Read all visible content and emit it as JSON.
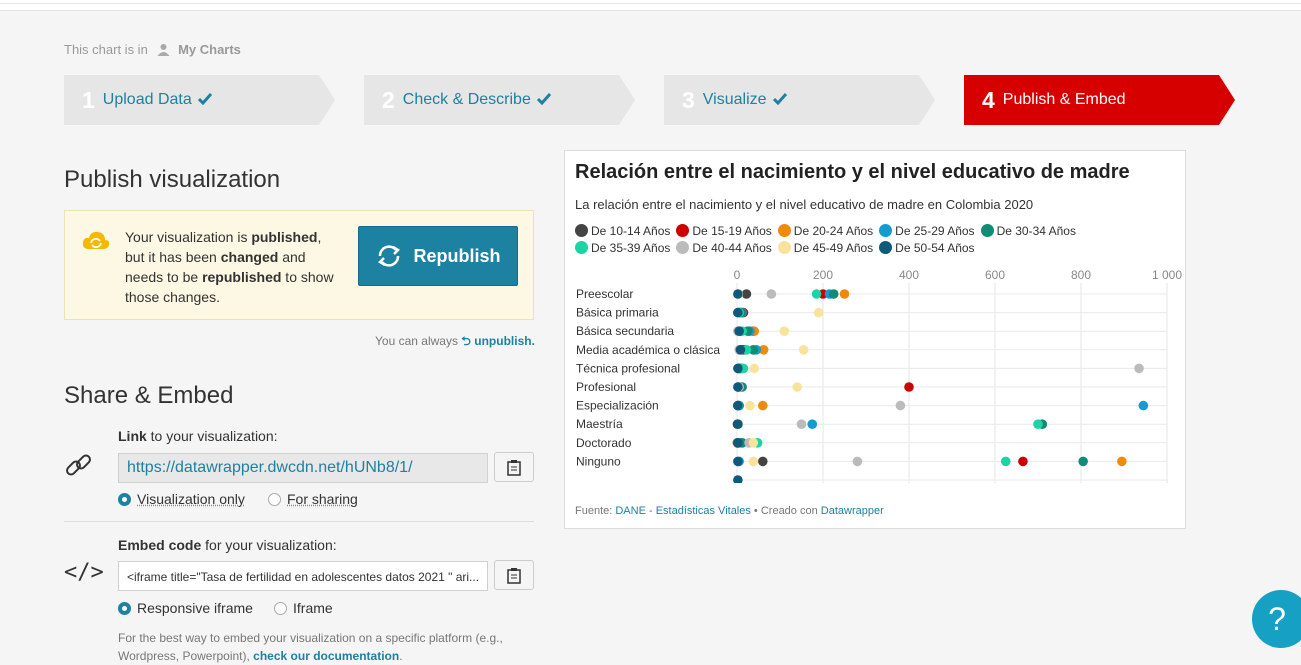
{
  "breadcrumb": {
    "prefix": "This chart is in",
    "folder": "My Charts"
  },
  "steps": [
    {
      "num": "1",
      "label": "Upload Data",
      "done": true
    },
    {
      "num": "2",
      "label": "Check & Describe",
      "done": true
    },
    {
      "num": "3",
      "label": "Visualize",
      "done": true
    },
    {
      "num": "4",
      "label": "Publish & Embed",
      "done": false
    }
  ],
  "publish": {
    "heading": "Publish visualization",
    "notice_parts": [
      "Your visualization is ",
      "published",
      ", but it has been ",
      "changed",
      " and needs to be ",
      "republished",
      " to show those changes."
    ],
    "republish_label": "Republish",
    "unpublish_prefix": "You can always",
    "unpublish_link": "unpublish."
  },
  "share": {
    "heading": "Share & Embed",
    "link_label_bold": "Link",
    "link_label_rest": " to your visualization:",
    "url": "https://datawrapper.dwcdn.net/hUNb8/1/",
    "link_options": [
      "Visualization only",
      "For sharing"
    ],
    "embed_label_bold": "Embed code",
    "embed_label_rest": " for your visualization:",
    "embed_code": "<iframe title=\"Tasa de fertilidad en adolescentes datos 2021 \" ari...",
    "embed_options": [
      "Responsive iframe",
      "Iframe"
    ],
    "hint_text": "For the best way to embed your visualization on a specific platform (e.g., Wordpress, Powerpoint), ",
    "hint_link": "check our documentation",
    "hint_end": "."
  },
  "chart_data": {
    "type": "scatter",
    "title": "Relación entre el nacimiento y el nivel educativo de madre",
    "subtitle": "La relación entre el nacimiento y el nivel educativo de madre en Colombia 2020",
    "xlim": [
      0,
      1000
    ],
    "x_ticks": [
      "0",
      "200",
      "400",
      "600",
      "800",
      "1 000"
    ],
    "x_tick_values": [
      0,
      200,
      400,
      600,
      800,
      1000
    ],
    "categories": [
      "Preescolar",
      "Básica primaria",
      "Básica secundaria",
      "Media académica o clásica",
      "Técnica profesional",
      "Profesional",
      "Especialización",
      "Maestría",
      "Doctorado",
      "Ninguno",
      ""
    ],
    "series": [
      {
        "name": "De 10-14 Años",
        "color": "#444444",
        "values": [
          22,
          5,
          8,
          12,
          3,
          3,
          2,
          1,
          1,
          60,
          null
        ]
      },
      {
        "name": "De 15-19 Años",
        "color": "#cc0000",
        "values": [
          200,
          15,
          38,
          18,
          5,
          400,
          3,
          2,
          1,
          665,
          null
        ]
      },
      {
        "name": "De 20-24 Años",
        "color": "#f08a0b",
        "values": [
          250,
          8,
          40,
          62,
          10,
          5,
          60,
          3,
          1,
          895,
          null
        ]
      },
      {
        "name": "De 25-29 Años",
        "color": "#149bd0",
        "values": [
          215,
          12,
          30,
          45,
          12,
          8,
          945,
          175,
          5,
          5,
          null
        ]
      },
      {
        "name": "De 30-34 Años",
        "color": "#0e8c76",
        "values": [
          225,
          10,
          25,
          38,
          8,
          12,
          5,
          710,
          12,
          805,
          null
        ]
      },
      {
        "name": "De 35-39 Años",
        "color": "#1bd3a3",
        "values": [
          185,
          5,
          12,
          22,
          15,
          5,
          3,
          700,
          48,
          625,
          null
        ]
      },
      {
        "name": "De 40-44 Años",
        "color": "#bbbbbb",
        "values": [
          80,
          2,
          2,
          5,
          935,
          5,
          380,
          150,
          28,
          280,
          null
        ]
      },
      {
        "name": "De 45-49 Años",
        "color": "#f9e39c",
        "values": [
          3,
          190,
          110,
          155,
          40,
          140,
          30,
          3,
          38,
          38,
          null
        ]
      },
      {
        "name": "De 50-54 Años",
        "color": "#0d5a7a",
        "values": [
          2,
          2,
          5,
          8,
          2,
          2,
          2,
          2,
          2,
          2,
          2
        ]
      }
    ],
    "source_label": "Fuente: ",
    "source_link": "DANE - Estadísticas Vitales",
    "credit_sep": " • Creado con ",
    "credit_link": "Datawrapper"
  }
}
